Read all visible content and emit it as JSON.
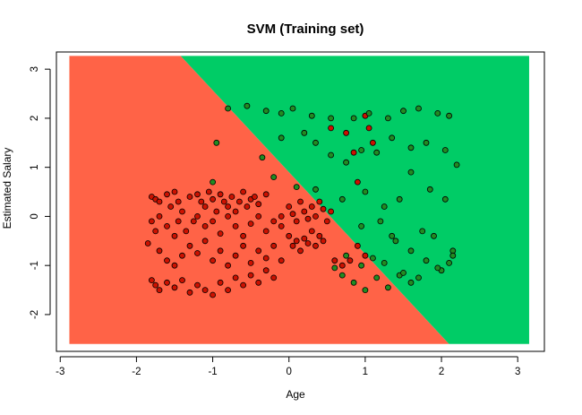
{
  "chart_data": {
    "type": "scatter",
    "title": "SVM (Training set)",
    "xlabel": "Age",
    "ylabel": "Estimated Salary",
    "xlim": [
      -3.05,
      3.35
    ],
    "ylim": [
      -2.75,
      3.35
    ],
    "x_ticks": [
      -3,
      -2,
      -1,
      0,
      1,
      2,
      3
    ],
    "y_ticks": [
      -2,
      -1,
      0,
      1,
      2,
      3
    ],
    "grid": false,
    "legend": "none",
    "region_extent": {
      "x": [
        -2.88,
        3.15
      ],
      "y": [
        -2.6,
        3.27
      ]
    },
    "decision_boundary": [
      [
        -1.42,
        3.27
      ],
      [
        2.1,
        -2.6
      ]
    ],
    "colors": {
      "region_0": "#ff6347",
      "region_1": "#00cc66",
      "point_0": "#cc1100",
      "point_1": "#228b22",
      "point_edge": "#000000"
    },
    "series": [
      {
        "class": 0,
        "points": [
          [
            -1.8,
            0.4
          ],
          [
            -1.75,
            0.35
          ],
          [
            -1.7,
            0.3
          ],
          [
            -1.6,
            0.45
          ],
          [
            -1.55,
            0.2
          ],
          [
            -1.5,
            0.5
          ],
          [
            -1.45,
            0.3
          ],
          [
            -1.4,
            0.1
          ],
          [
            -1.3,
            0.4
          ],
          [
            -1.25,
            -0.1
          ],
          [
            -1.2,
            0.45
          ],
          [
            -1.15,
            0.3
          ],
          [
            -1.1,
            0.2
          ],
          [
            -1.05,
            0.5
          ],
          [
            -1.0,
            0.35
          ],
          [
            -0.95,
            0.1
          ],
          [
            -0.9,
            0.45
          ],
          [
            -0.85,
            0.3
          ],
          [
            -0.8,
            0.2
          ],
          [
            -0.75,
            0.4
          ],
          [
            -0.7,
            0.1
          ],
          [
            -0.65,
            0.3
          ],
          [
            -0.6,
            0.5
          ],
          [
            -0.55,
            0.2
          ],
          [
            -0.5,
            0.35
          ],
          [
            -0.45,
            0.4
          ],
          [
            -0.4,
            0.25
          ],
          [
            -0.3,
            0.45
          ],
          [
            -1.8,
            -0.1
          ],
          [
            -1.75,
            -0.3
          ],
          [
            -1.7,
            0.0
          ],
          [
            -1.6,
            -0.2
          ],
          [
            -1.5,
            -0.4
          ],
          [
            -1.45,
            -0.1
          ],
          [
            -1.35,
            -0.3
          ],
          [
            -1.2,
            0.0
          ],
          [
            -1.1,
            -0.2
          ],
          [
            -1.0,
            -0.1
          ],
          [
            -0.9,
            -0.35
          ],
          [
            -0.8,
            0.0
          ],
          [
            -0.7,
            -0.2
          ],
          [
            -0.6,
            -0.4
          ],
          [
            -0.5,
            -0.15
          ],
          [
            -0.4,
            0.0
          ],
          [
            -0.3,
            -0.3
          ],
          [
            -0.2,
            -0.1
          ],
          [
            -0.1,
            0.0
          ],
          [
            -1.85,
            -0.55
          ],
          [
            -1.7,
            -0.7
          ],
          [
            -1.6,
            -0.9
          ],
          [
            -1.5,
            -1.0
          ],
          [
            -1.4,
            -0.8
          ],
          [
            -1.3,
            -0.6
          ],
          [
            -1.2,
            -0.75
          ],
          [
            -1.1,
            -0.5
          ],
          [
            -1.0,
            -0.9
          ],
          [
            -0.9,
            -0.7
          ],
          [
            -0.8,
            -1.0
          ],
          [
            -0.7,
            -0.8
          ],
          [
            -0.6,
            -0.6
          ],
          [
            -0.5,
            -0.95
          ],
          [
            -0.4,
            -0.7
          ],
          [
            -0.3,
            -0.85
          ],
          [
            -0.2,
            -0.6
          ],
          [
            -0.1,
            -0.9
          ],
          [
            -1.8,
            -1.3
          ],
          [
            -1.75,
            -1.4
          ],
          [
            -1.7,
            -1.5
          ],
          [
            -1.6,
            -1.35
          ],
          [
            -1.5,
            -1.45
          ],
          [
            -1.4,
            -1.3
          ],
          [
            -1.3,
            -1.55
          ],
          [
            -1.2,
            -1.4
          ],
          [
            -1.1,
            -1.5
          ],
          [
            -1.0,
            -1.6
          ],
          [
            -0.9,
            -1.35
          ],
          [
            -0.8,
            -1.5
          ],
          [
            -0.7,
            -1.25
          ],
          [
            -0.6,
            -1.4
          ],
          [
            -0.5,
            -1.2
          ],
          [
            -0.4,
            -1.35
          ],
          [
            -0.3,
            -1.1
          ],
          [
            -0.2,
            -1.25
          ],
          [
            -0.1,
            -0.2
          ],
          [
            0.0,
            0.2
          ],
          [
            0.05,
            0.05
          ],
          [
            0.1,
            -0.1
          ],
          [
            0.15,
            0.3
          ],
          [
            0.2,
            0.1
          ],
          [
            0.25,
            -0.05
          ],
          [
            0.3,
            0.2
          ],
          [
            0.35,
            0.0
          ],
          [
            0.4,
            0.3
          ],
          [
            0.45,
            0.15
          ],
          [
            0.5,
            -0.1
          ],
          [
            0.55,
            0.1
          ],
          [
            0.0,
            -0.4
          ],
          [
            0.05,
            -0.6
          ],
          [
            0.1,
            -0.5
          ],
          [
            0.15,
            -0.7
          ],
          [
            0.2,
            -0.45
          ],
          [
            0.25,
            -0.55
          ],
          [
            0.3,
            -0.3
          ],
          [
            0.35,
            -0.6
          ],
          [
            0.4,
            -0.4
          ],
          [
            0.45,
            -0.5
          ],
          [
            0.55,
            1.8
          ],
          [
            0.75,
            1.7
          ],
          [
            0.85,
            1.3
          ],
          [
            0.9,
            0.7
          ],
          [
            1.0,
            2.05
          ],
          [
            1.05,
            1.8
          ],
          [
            1.1,
            1.5
          ],
          [
            0.9,
            -0.6
          ],
          [
            1.0,
            -0.8
          ],
          [
            0.8,
            -0.9
          ],
          [
            0.7,
            -1.0
          ],
          [
            0.6,
            -0.9
          ]
        ]
      },
      {
        "class": 1,
        "points": [
          [
            -0.8,
            2.2
          ],
          [
            -0.55,
            2.25
          ],
          [
            -0.3,
            2.15
          ],
          [
            -0.1,
            2.1
          ],
          [
            0.05,
            2.2
          ],
          [
            0.3,
            2.05
          ],
          [
            0.55,
            2.0
          ],
          [
            0.85,
            2.0
          ],
          [
            1.05,
            2.1
          ],
          [
            1.3,
            2.0
          ],
          [
            1.5,
            2.15
          ],
          [
            1.7,
            2.2
          ],
          [
            1.95,
            2.1
          ],
          [
            2.1,
            2.05
          ],
          [
            -0.95,
            1.5
          ],
          [
            -0.35,
            1.2
          ],
          [
            -0.1,
            1.6
          ],
          [
            0.2,
            1.7
          ],
          [
            0.35,
            1.5
          ],
          [
            0.55,
            1.25
          ],
          [
            0.75,
            1.1
          ],
          [
            0.95,
            1.35
          ],
          [
            1.15,
            1.3
          ],
          [
            1.35,
            1.6
          ],
          [
            1.6,
            1.4
          ],
          [
            1.8,
            1.5
          ],
          [
            2.05,
            1.35
          ],
          [
            2.2,
            1.05
          ],
          [
            -1.0,
            0.7
          ],
          [
            -0.2,
            0.8
          ],
          [
            0.1,
            0.6
          ],
          [
            0.35,
            0.55
          ],
          [
            0.7,
            0.35
          ],
          [
            1.0,
            0.5
          ],
          [
            1.25,
            0.2
          ],
          [
            1.45,
            0.35
          ],
          [
            1.6,
            0.9
          ],
          [
            1.85,
            0.55
          ],
          [
            2.05,
            0.35
          ],
          [
            1.75,
            -0.3
          ],
          [
            1.9,
            -0.4
          ],
          [
            2.15,
            -0.7
          ],
          [
            0.95,
            -0.2
          ],
          [
            1.2,
            -0.1
          ],
          [
            1.4,
            -0.5
          ],
          [
            1.6,
            -0.7
          ],
          [
            1.8,
            -0.9
          ],
          [
            2.0,
            -1.1
          ],
          [
            2.15,
            -0.8
          ],
          [
            0.7,
            -1.2
          ],
          [
            0.85,
            -1.35
          ],
          [
            1.0,
            -1.5
          ],
          [
            1.15,
            -1.25
          ],
          [
            1.3,
            -1.45
          ],
          [
            1.45,
            -1.2
          ],
          [
            1.6,
            -1.35
          ],
          [
            0.75,
            -0.8
          ],
          [
            0.95,
            -1.0
          ],
          [
            1.1,
            -0.85
          ],
          [
            1.25,
            -0.95
          ],
          [
            1.5,
            -1.15
          ],
          [
            1.7,
            -1.25
          ],
          [
            1.95,
            -1.05
          ],
          [
            2.1,
            -0.95
          ],
          [
            0.6,
            -1.05
          ],
          [
            1.35,
            -0.4
          ]
        ]
      }
    ]
  }
}
